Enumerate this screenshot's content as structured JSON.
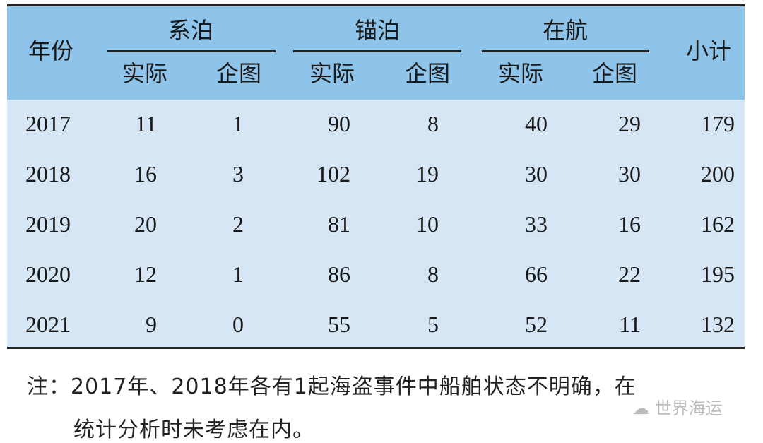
{
  "header": {
    "year": "年份",
    "groups": [
      "系泊",
      "锚泊",
      "在航"
    ],
    "sub": [
      "实际",
      "企图",
      "实际",
      "企图",
      "实际",
      "企图"
    ],
    "total": "小计"
  },
  "rows": [
    {
      "year": "2017",
      "values": [
        "11",
        "1",
        "90",
        "8",
        "40",
        "29",
        "179"
      ]
    },
    {
      "year": "2018",
      "values": [
        "16",
        "3",
        "102",
        "19",
        "30",
        "30",
        "200"
      ]
    },
    {
      "year": "2019",
      "values": [
        "20",
        "2",
        "81",
        "10",
        "33",
        "16",
        "162"
      ]
    },
    {
      "year": "2020",
      "values": [
        "12",
        "1",
        "86",
        "8",
        "66",
        "22",
        "195"
      ]
    },
    {
      "year": "2021",
      "values": [
        "9",
        "0",
        "55",
        "5",
        "52",
        "11",
        "132"
      ]
    }
  ],
  "note": {
    "line1": "注：2017年、2018年各有1起海盗事件中船舶状态不明确，在",
    "line2": "统计分析时未考虑在内。"
  },
  "watermark": "世界海运",
  "colors": {
    "header_bg": "#8ec4e9",
    "body_bg": "#d7e6f5"
  }
}
